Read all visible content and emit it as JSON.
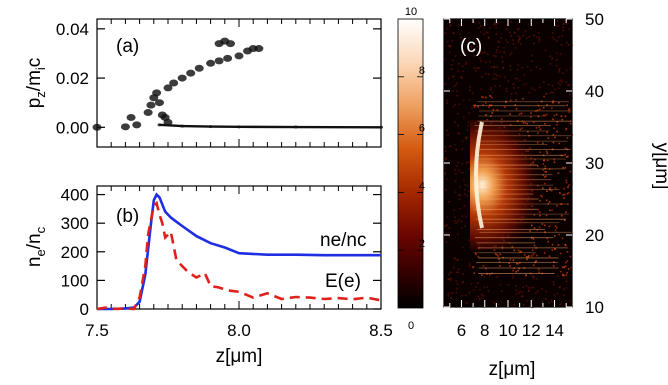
{
  "chart_data": [
    {
      "type": "scatter",
      "panel_label": "(a)",
      "ylabel": "p_z/m_i c",
      "ylabel_parts": {
        "p": "p",
        "sub": "z",
        "slash": "/m",
        "sub2": "i",
        "c": "c"
      },
      "ylim": [
        -0.008,
        0.044
      ],
      "yticks": [
        "0.00",
        "0.02",
        "0.04"
      ],
      "ytick_values": [
        0.0,
        0.02,
        0.04
      ],
      "xlim": [
        7.5,
        8.5
      ],
      "grid": false,
      "clusters": [
        {
          "name": "",
          "points": [
            [
              7.62,
              0.004
            ],
            [
              7.6,
              0.0002
            ],
            [
              7.64,
              0.001
            ],
            [
              7.5,
              0.0
            ]
          ]
        },
        {
          "name": "",
          "points": [
            [
              7.68,
              0.006
            ],
            [
              7.69,
              0.009
            ],
            [
              7.7,
              0.012
            ],
            [
              7.71,
              0.014
            ],
            [
              7.72,
              0.01
            ],
            [
              7.73,
              0.005
            ],
            [
              7.75,
              0.002
            ],
            [
              7.74,
              0.004
            ]
          ]
        },
        {
          "name": "",
          "points": [
            [
              7.75,
              0.016
            ],
            [
              7.77,
              0.018
            ],
            [
              7.8,
              0.02
            ],
            [
              7.83,
              0.022
            ],
            [
              7.86,
              0.024
            ],
            [
              7.9,
              0.026
            ],
            [
              7.93,
              0.027
            ],
            [
              7.96,
              0.028
            ],
            [
              8.0,
              0.029
            ],
            [
              8.03,
              0.031
            ],
            [
              8.05,
              0.032
            ],
            [
              8.07,
              0.032
            ]
          ]
        },
        {
          "name": "",
          "points": [
            [
              7.93,
              0.034
            ],
            [
              7.95,
              0.035
            ],
            [
              7.97,
              0.034
            ]
          ]
        },
        {
          "name": "",
          "points": [
            [
              7.72,
              0.001
            ],
            [
              7.8,
              0.0005
            ],
            [
              7.9,
              0.0003
            ],
            [
              8.0,
              0.0002
            ],
            [
              8.2,
              0.0001
            ],
            [
              8.5,
              0.0
            ]
          ]
        }
      ]
    },
    {
      "type": "line",
      "panel_label": "(b)",
      "xlabel": "z[μm]",
      "ylabel": "n_e/n_c",
      "ylabel_parts": {
        "n": "n",
        "sub": "e",
        "slash": "/n",
        "sub2": "c"
      },
      "xlim": [
        7.5,
        8.5
      ],
      "ylim": [
        0,
        430
      ],
      "xticks": [
        "7.5",
        "8.0",
        "8.5"
      ],
      "xtick_values": [
        7.5,
        8.0,
        8.5
      ],
      "yticks": [
        "0",
        "100",
        "200",
        "300",
        "400"
      ],
      "ytick_values": [
        0,
        100,
        200,
        300,
        400
      ],
      "grid": false,
      "series": [
        {
          "name": "ne/nc",
          "color": "#1f2ee0",
          "style": "solid",
          "x": [
            7.5,
            7.55,
            7.6,
            7.63,
            7.65,
            7.67,
            7.69,
            7.7,
            7.71,
            7.72,
            7.74,
            7.76,
            7.78,
            7.8,
            7.85,
            7.9,
            7.95,
            8.0,
            8.1,
            8.2,
            8.3,
            8.4,
            8.5
          ],
          "values": [
            0,
            0,
            2,
            5,
            25,
            120,
            300,
            380,
            400,
            390,
            340,
            320,
            305,
            290,
            255,
            230,
            215,
            195,
            190,
            190,
            188,
            188,
            188
          ]
        },
        {
          "name": "E(e)",
          "color": "#e0201a",
          "style": "dashed",
          "x": [
            7.5,
            7.53,
            7.57,
            7.6,
            7.63,
            7.65,
            7.67,
            7.68,
            7.7,
            7.71,
            7.72,
            7.73,
            7.74,
            7.76,
            7.78,
            7.8,
            7.82,
            7.85,
            7.88,
            7.9,
            7.93,
            7.96,
            8.0,
            8.05,
            8.1,
            8.15,
            8.2,
            8.25,
            8.3,
            8.35,
            8.4,
            8.45,
            8.5
          ],
          "values": [
            0,
            5,
            0,
            2,
            0,
            40,
            150,
            260,
            360,
            370,
            330,
            300,
            250,
            270,
            170,
            150,
            130,
            110,
            125,
            80,
            75,
            65,
            60,
            40,
            55,
            35,
            42,
            40,
            35,
            38,
            34,
            40,
            30
          ]
        }
      ],
      "annotations": [
        "ne/nc",
        "E(e)"
      ]
    },
    {
      "type": "heatmap",
      "panel_label": "(c)",
      "xlabel": "z[μm]",
      "ylabel": "y[μm]",
      "xlim": [
        4.5,
        15.5
      ],
      "ylim": [
        10,
        50
      ],
      "xticks": [
        "6",
        "8",
        "10",
        "12",
        "14"
      ],
      "xtick_values": [
        6,
        8,
        10,
        12,
        14
      ],
      "yticks": [
        "10",
        "20",
        "30",
        "40",
        "50"
      ],
      "ytick_values": [
        10,
        20,
        30,
        40,
        50
      ],
      "colorbar": {
        "min": 0,
        "max": 10,
        "ticks": [
          "0",
          "2",
          "4",
          "6",
          "8",
          "10"
        ],
        "tick_values": [
          0,
          2,
          4,
          6,
          8,
          10
        ],
        "colors": [
          "#000000",
          "#3a0000",
          "#7a0a00",
          "#b83400",
          "#e57020",
          "#f5b37a",
          "#fde6d0",
          "#ffffff"
        ]
      },
      "grid": false
    }
  ]
}
